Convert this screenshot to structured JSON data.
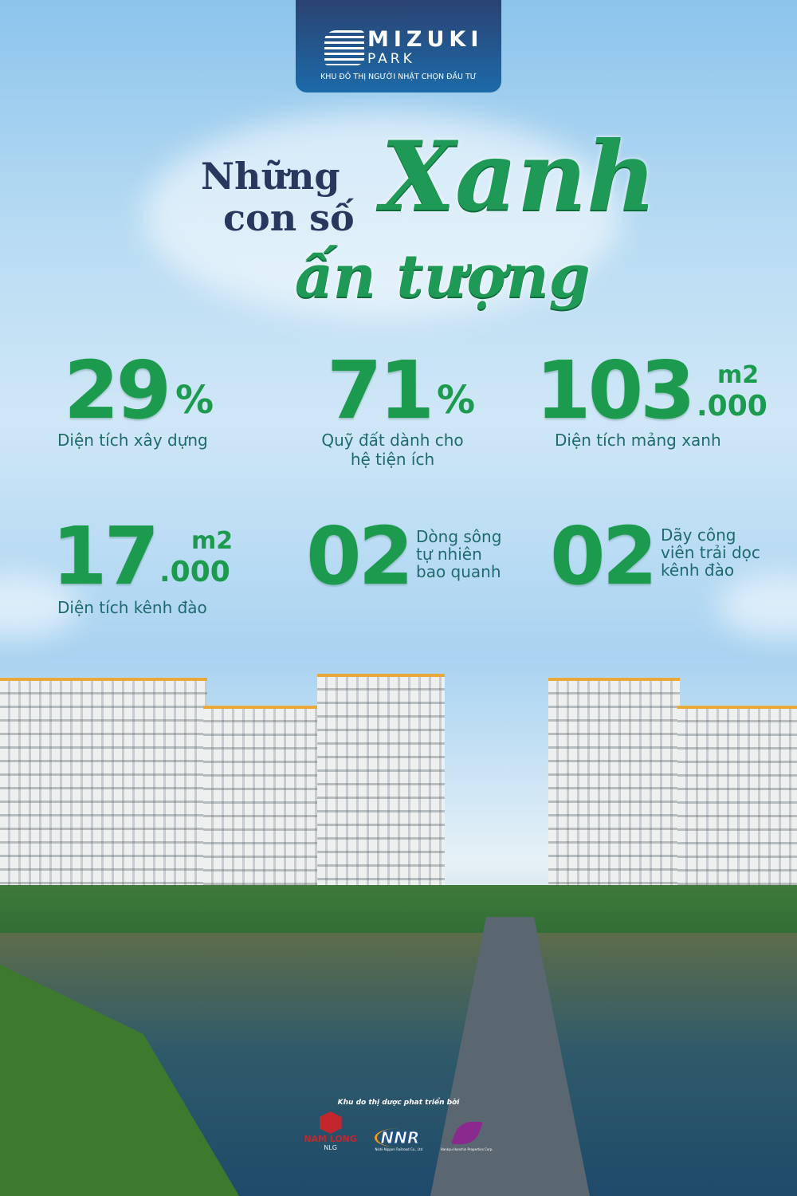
{
  "brand": {
    "name": "MIZUKI",
    "sub": "PARK",
    "tagline": "KHU ĐÔ THỊ NGƯỜI NHẬT CHỌN ĐẦU TƯ"
  },
  "headline": {
    "line1": "Những",
    "line2": "con số",
    "accent": "Xanh",
    "line3": "ấn tượng"
  },
  "stats": [
    {
      "value": "29",
      "unit": "%",
      "label": "Diện tích xây dựng"
    },
    {
      "value": "71",
      "unit": "%",
      "label1": "Quỹ đất dành cho",
      "label2": "hệ tiện ích"
    },
    {
      "value": "103",
      "unit_top": "m2",
      "unit": ".000",
      "label": "Diện tích mảng xanh"
    },
    {
      "value": "17",
      "unit_top": "m2",
      "unit": ".000",
      "label": "Diện tích kênh đào"
    },
    {
      "value": "02",
      "label1": "Dòng sông",
      "label2": "tự nhiên",
      "label3": "bao quanh"
    },
    {
      "value": "02",
      "label1": "Dãy công",
      "label2": "viên trải dọc",
      "label3": "kênh đào"
    }
  ],
  "credits": {
    "caption": "Khu do thị dược phat triển bởi",
    "partners": [
      {
        "name": "NAM LONG",
        "sub": "NLG",
        "color": "#c3272d"
      },
      {
        "name": "NNR",
        "sub": "Nishi-Nippon Railroad Co., Ltd",
        "color": "#1c4fa0"
      },
      {
        "name": "Hankyu Hanshin Properties Corp.",
        "color": "#8a2a8e"
      }
    ]
  }
}
